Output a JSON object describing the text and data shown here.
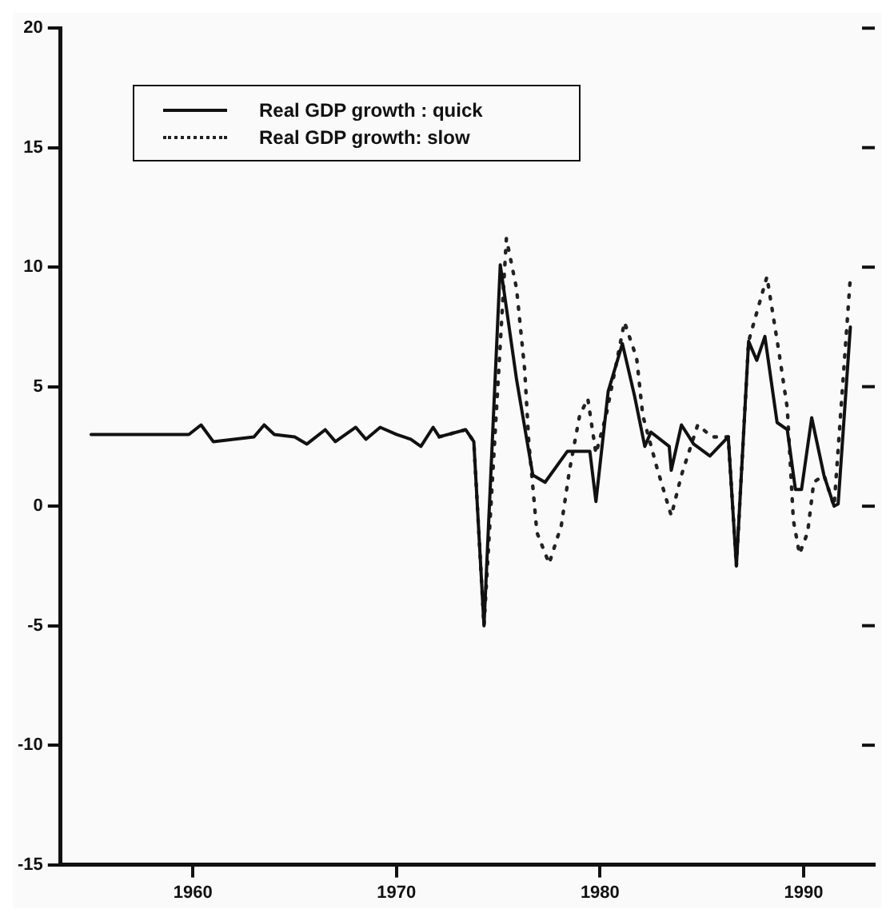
{
  "chart_data": {
    "type": "line",
    "xlim": [
      1953.5,
      1993.5
    ],
    "xticks": [
      1960,
      1970,
      1980,
      1990
    ],
    "ylim": [
      -15,
      20
    ],
    "yticks": [
      -15,
      -10,
      -5,
      0,
      5,
      10,
      15,
      20
    ],
    "grid": false,
    "legend": "top left",
    "marker": "none",
    "series": [
      {
        "name": "Real GDP growth : quick",
        "color": "#111111",
        "line_style": "solid",
        "x": [
          1955,
          1959.8,
          1960.4,
          1961,
          1962,
          1963,
          1963.5,
          1964,
          1965,
          1965.6,
          1966.5,
          1967,
          1968,
          1968.5,
          1969.2,
          1970,
          1970.7,
          1971.2,
          1971.8,
          1972.1,
          1973.4,
          1973.8,
          1974.3,
          1975.1,
          1975.9,
          1976.7,
          1977.3,
          1978.4,
          1979.5,
          1979.8,
          1980.4,
          1981.1,
          1981.7,
          1982.2,
          1982.5,
          1983.4,
          1983.5,
          1984,
          1984.6,
          1985.4,
          1986.3,
          1986.7,
          1987.3,
          1987.7,
          1988.1,
          1988.7,
          1989.2,
          1989.6,
          1989.9,
          1990.4,
          1991,
          1991.5,
          1991.7,
          1992.3
        ],
        "values": [
          3.0,
          3.0,
          3.4,
          2.7,
          2.8,
          2.9,
          3.4,
          3.0,
          2.9,
          2.6,
          3.2,
          2.7,
          3.3,
          2.8,
          3.3,
          3.0,
          2.8,
          2.5,
          3.3,
          2.9,
          3.2,
          2.7,
          -5.0,
          10.1,
          5.3,
          1.3,
          1.0,
          2.3,
          2.3,
          0.2,
          4.8,
          6.8,
          4.6,
          2.5,
          3.1,
          2.5,
          1.5,
          3.4,
          2.6,
          2.1,
          2.9,
          -2.5,
          6.9,
          6.1,
          7.1,
          3.5,
          3.2,
          0.7,
          0.7,
          3.7,
          1.3,
          0.0,
          0.1,
          7.5
        ]
      },
      {
        "name": "Real GDP growth: slow",
        "color": "#222222",
        "line_style": "dotted",
        "x": [
          1972.1,
          1973.4,
          1973.8,
          1974.3,
          1975.4,
          1975.9,
          1976.3,
          1976.5,
          1976.9,
          1977.5,
          1978.1,
          1978.5,
          1979,
          1979.4,
          1979.8,
          1980.3,
          1981.2,
          1981.8,
          1982.1,
          1982.8,
          1983.5,
          1984,
          1984.8,
          1985.5,
          1986.3,
          1986.7,
          1987.3,
          1988.2,
          1988.8,
          1989.2,
          1989.5,
          1989.8,
          1990.2,
          1990.5,
          1991,
          1991.5,
          1992.3
        ],
        "values": [
          2.9,
          3.2,
          2.7,
          -5.0,
          11.2,
          9.1,
          5.7,
          2.7,
          -1.1,
          -2.4,
          -0.8,
          1.5,
          3.8,
          4.5,
          2.2,
          3.8,
          7.7,
          6.2,
          3.8,
          1.6,
          -0.4,
          1.3,
          3.4,
          2.9,
          2.9,
          -2.5,
          6.9,
          9.6,
          6.4,
          4.1,
          -0.6,
          -2.0,
          -1.1,
          1.0,
          1.3,
          0.0,
          9.6
        ]
      }
    ]
  }
}
